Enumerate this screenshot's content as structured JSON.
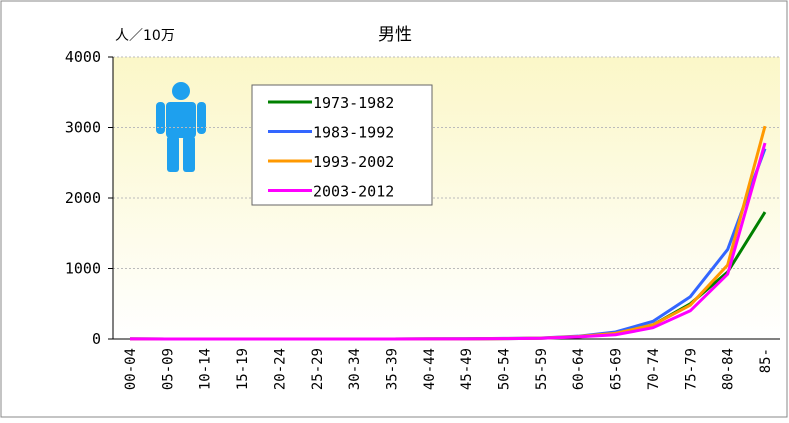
{
  "chart_data": {
    "type": "line",
    "title": "男性",
    "y_label": "人／10万",
    "categories": [
      "00-04",
      "05-09",
      "10-14",
      "15-19",
      "20-24",
      "25-29",
      "30-34",
      "35-39",
      "40-44",
      "45-49",
      "50-54",
      "55-59",
      "60-64",
      "65-69",
      "70-74",
      "75-79",
      "80-84",
      "85-"
    ],
    "series": [
      {
        "name": "1973-1982",
        "color": "#008000",
        "values": [
          2,
          0,
          0,
          0,
          0,
          0,
          0,
          0,
          1,
          2,
          5,
          10,
          30,
          80,
          200,
          500,
          950,
          1800
        ]
      },
      {
        "name": "1983-1992",
        "color": "#3366ff",
        "values": [
          2,
          0,
          0,
          0,
          0,
          0,
          0,
          0,
          1,
          3,
          8,
          15,
          40,
          100,
          250,
          600,
          1270,
          2700
        ]
      },
      {
        "name": "1993-2002",
        "color": "#ff9900",
        "values": [
          2,
          0,
          0,
          0,
          0,
          0,
          0,
          0,
          1,
          2,
          6,
          12,
          35,
          80,
          200,
          480,
          1050,
          3020
        ]
      },
      {
        "name": "2003-2012",
        "color": "#ff00ff",
        "values": [
          2,
          0,
          0,
          0,
          0,
          0,
          0,
          0,
          1,
          2,
          5,
          10,
          30,
          60,
          160,
          400,
          920,
          2780
        ]
      }
    ],
    "ylim": [
      0,
      4000
    ],
    "yticks": [
      0,
      1000,
      2000,
      3000,
      4000
    ],
    "grid": true
  }
}
